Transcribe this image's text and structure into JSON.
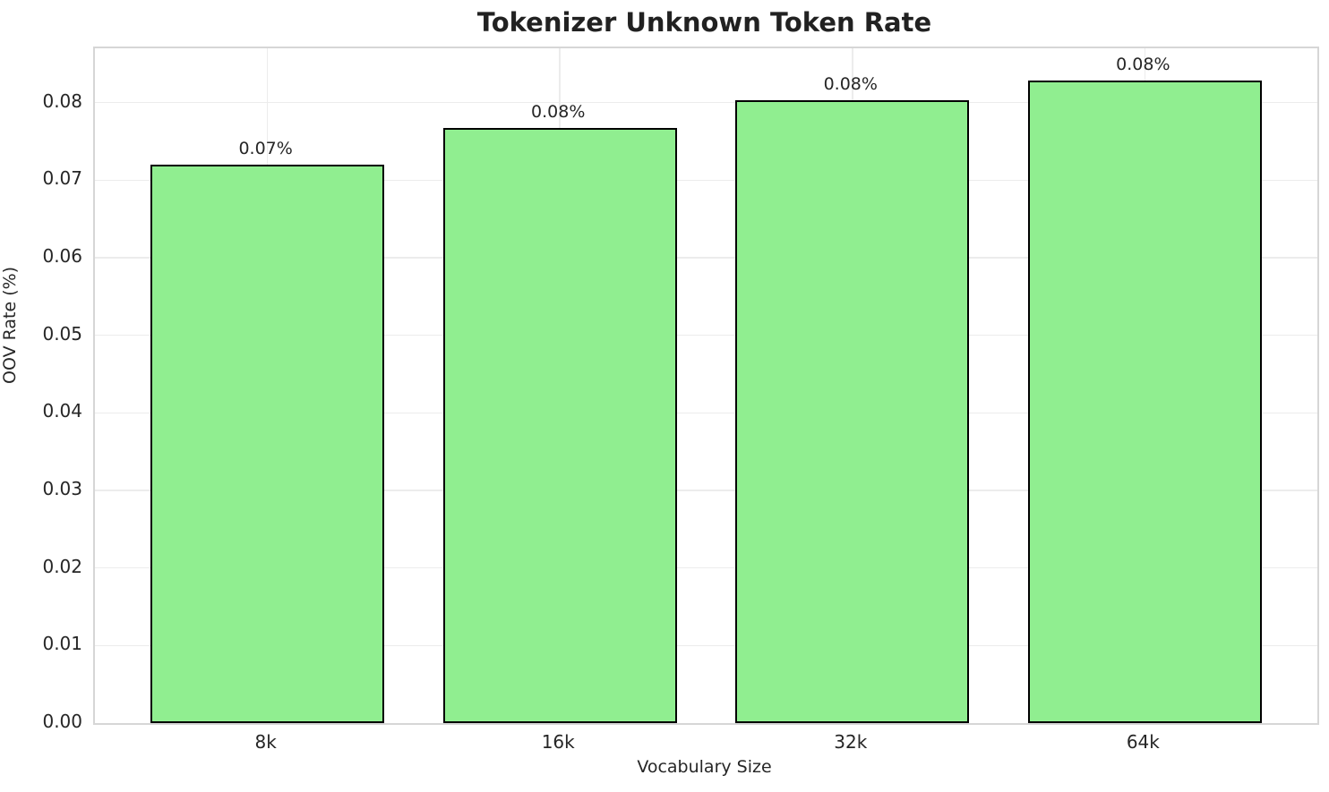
{
  "chart_data": {
    "type": "bar",
    "title": "Tokenizer Unknown Token Rate",
    "xlabel": "Vocabulary Size",
    "ylabel": "OOV Rate (%)",
    "categories": [
      "8k",
      "16k",
      "32k",
      "64k"
    ],
    "values": [
      0.072,
      0.0767,
      0.0803,
      0.0828
    ],
    "bar_labels": [
      "0.07%",
      "0.08%",
      "0.08%",
      "0.08%"
    ],
    "yticks": [
      0.0,
      0.01,
      0.02,
      0.03,
      0.04,
      0.05,
      0.06,
      0.07,
      0.08
    ],
    "ytick_labels": [
      "0.00",
      "0.01",
      "0.02",
      "0.03",
      "0.04",
      "0.05",
      "0.06",
      "0.07",
      "0.08"
    ],
    "ylim": [
      0,
      0.087
    ],
    "xlim": [
      -0.59,
      3.59
    ],
    "bar_width_units": 0.8,
    "grid": true,
    "legend": "none",
    "bar_color": "#90EE90",
    "bar_edge_color": "#000000",
    "grid_color": "#ececec",
    "spine_color": "#d6d6d6",
    "text_color": "#262626",
    "title_color": "#212121"
  }
}
